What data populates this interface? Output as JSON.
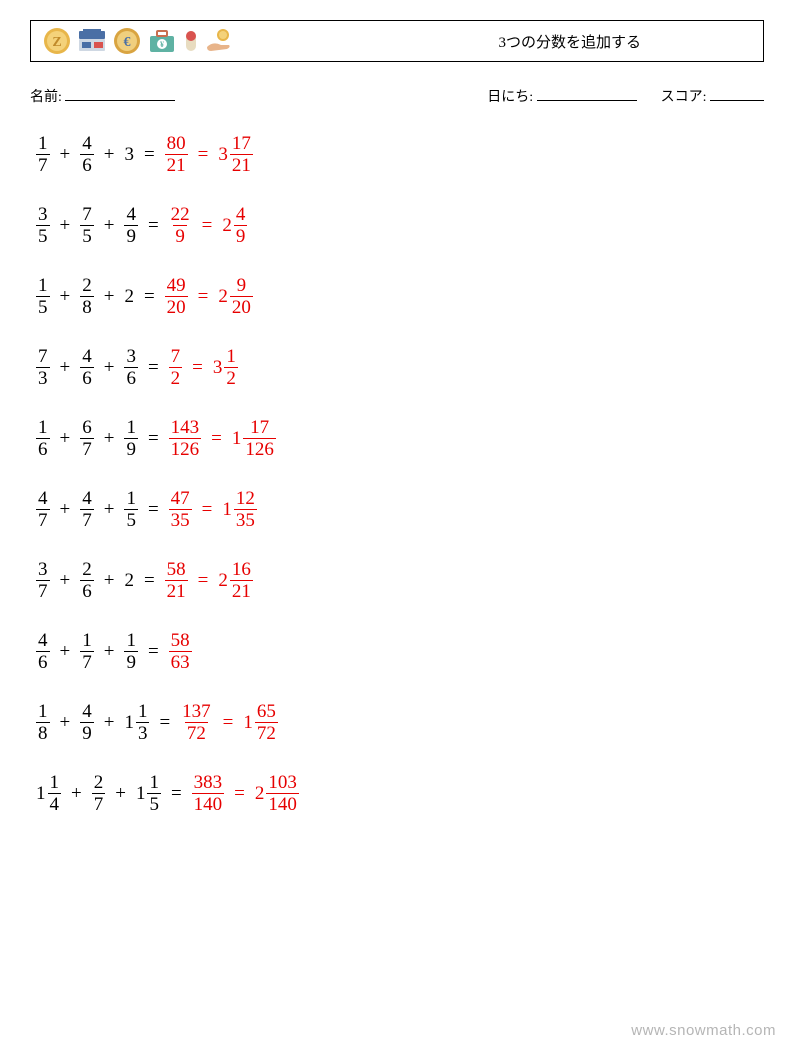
{
  "header": {
    "title": "3つの分数を追加する",
    "icon_colors": {
      "coin1_outer": "#e8b64a",
      "coin1_inner": "#f4d27a",
      "card_body": "#4a6fa5",
      "card_accent": "#cfd8e3",
      "card_red": "#d9534f",
      "coin2_outer": "#d9a441",
      "coin2_inner": "#f0cf7e",
      "coin2_sym": "#4a6fa5",
      "case_body": "#5fb2a3",
      "case_handle": "#c96f4f",
      "case_tag": "#ffffff",
      "pill_red": "#d9534f",
      "pill_beige": "#e8dcc0",
      "hand_skin": "#e8b48a",
      "hand_coin": "#e8b64a"
    }
  },
  "meta": {
    "name_label": "名前:",
    "date_label": "日にち:",
    "score_label": "スコア:",
    "name_blank_width": 110,
    "date_blank_width": 100,
    "score_blank_width": 54
  },
  "colors": {
    "text": "#000000",
    "answer": "#e60000",
    "background": "#ffffff"
  },
  "typography": {
    "body_fontsize": 19,
    "meta_fontsize": 14,
    "title_fontsize": 15,
    "font_family": "Times New Roman"
  },
  "problems": [
    {
      "terms": [
        {
          "n": "1",
          "d": "7"
        },
        {
          "n": "4",
          "d": "6"
        },
        {
          "whole": "3"
        }
      ],
      "answer": {
        "frac": {
          "n": "80",
          "d": "21"
        },
        "mixed": {
          "w": "3",
          "n": "17",
          "d": "21"
        }
      }
    },
    {
      "terms": [
        {
          "n": "3",
          "d": "5"
        },
        {
          "n": "7",
          "d": "5"
        },
        {
          "n": "4",
          "d": "9"
        }
      ],
      "answer": {
        "frac": {
          "n": "22",
          "d": "9"
        },
        "mixed": {
          "w": "2",
          "n": "4",
          "d": "9"
        }
      }
    },
    {
      "terms": [
        {
          "n": "1",
          "d": "5"
        },
        {
          "n": "2",
          "d": "8"
        },
        {
          "whole": "2"
        }
      ],
      "answer": {
        "frac": {
          "n": "49",
          "d": "20"
        },
        "mixed": {
          "w": "2",
          "n": "9",
          "d": "20"
        }
      }
    },
    {
      "terms": [
        {
          "n": "7",
          "d": "3"
        },
        {
          "n": "4",
          "d": "6"
        },
        {
          "n": "3",
          "d": "6"
        }
      ],
      "answer": {
        "frac": {
          "n": "7",
          "d": "2"
        },
        "mixed": {
          "w": "3",
          "n": "1",
          "d": "2"
        }
      }
    },
    {
      "terms": [
        {
          "n": "1",
          "d": "6"
        },
        {
          "n": "6",
          "d": "7"
        },
        {
          "n": "1",
          "d": "9"
        }
      ],
      "answer": {
        "frac": {
          "n": "143",
          "d": "126"
        },
        "mixed": {
          "w": "1",
          "n": "17",
          "d": "126"
        }
      }
    },
    {
      "terms": [
        {
          "n": "4",
          "d": "7"
        },
        {
          "n": "4",
          "d": "7"
        },
        {
          "n": "1",
          "d": "5"
        }
      ],
      "answer": {
        "frac": {
          "n": "47",
          "d": "35"
        },
        "mixed": {
          "w": "1",
          "n": "12",
          "d": "35"
        }
      }
    },
    {
      "terms": [
        {
          "n": "3",
          "d": "7"
        },
        {
          "n": "2",
          "d": "6"
        },
        {
          "whole": "2"
        }
      ],
      "answer": {
        "frac": {
          "n": "58",
          "d": "21"
        },
        "mixed": {
          "w": "2",
          "n": "16",
          "d": "21"
        }
      }
    },
    {
      "terms": [
        {
          "n": "4",
          "d": "6"
        },
        {
          "n": "1",
          "d": "7"
        },
        {
          "n": "1",
          "d": "9"
        }
      ],
      "answer": {
        "frac": {
          "n": "58",
          "d": "63"
        }
      }
    },
    {
      "terms": [
        {
          "n": "1",
          "d": "8"
        },
        {
          "n": "4",
          "d": "9"
        },
        {
          "w": "1",
          "n": "1",
          "d": "3"
        }
      ],
      "answer": {
        "frac": {
          "n": "137",
          "d": "72"
        },
        "mixed": {
          "w": "1",
          "n": "65",
          "d": "72"
        }
      }
    },
    {
      "terms": [
        {
          "w": "1",
          "n": "1",
          "d": "4"
        },
        {
          "n": "2",
          "d": "7"
        },
        {
          "w": "1",
          "n": "1",
          "d": "5"
        }
      ],
      "answer": {
        "frac": {
          "n": "383",
          "d": "140"
        },
        "mixed": {
          "w": "2",
          "n": "103",
          "d": "140"
        }
      }
    }
  ],
  "watermark": "www.snowmath.com"
}
